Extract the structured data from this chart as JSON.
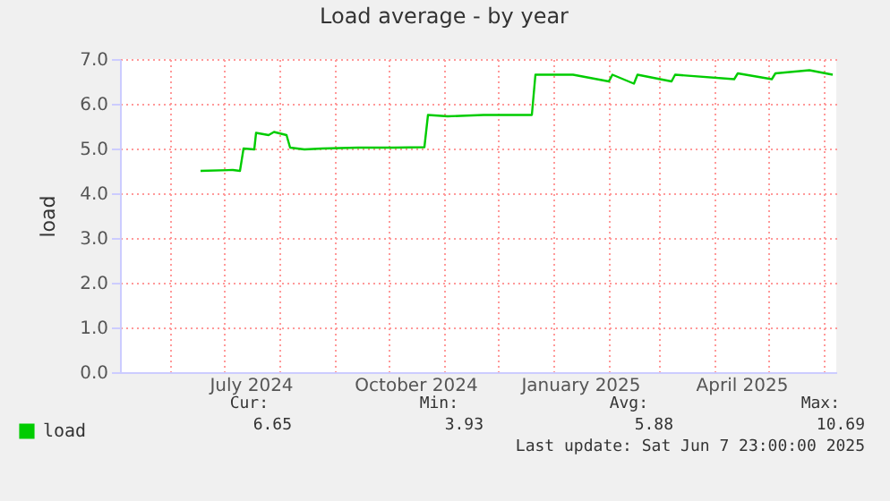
{
  "chart_data": {
    "type": "line",
    "title": "Load average - by year",
    "ylabel": "load",
    "x": [
      "2024-06-18",
      "2024-07-06",
      "2024-07-10",
      "2024-07-12",
      "2024-07-18",
      "2024-07-19",
      "2024-07-26",
      "2024-07-29",
      "2024-08-03",
      "2024-08-05",
      "2024-08-07",
      "2024-08-15",
      "2024-08-25",
      "2024-09-14",
      "2024-10-04",
      "2024-10-21",
      "2024-10-23",
      "2024-11-03",
      "2024-11-23",
      "2024-12-20",
      "2024-12-22",
      "2025-01-12",
      "2025-02-01",
      "2025-02-03",
      "2025-02-15",
      "2025-02-17",
      "2025-03-08",
      "2025-03-10",
      "2025-04-12",
      "2025-04-14",
      "2025-05-03",
      "2025-05-05",
      "2025-05-24",
      "2025-06-06"
    ],
    "series": [
      {
        "name": "load",
        "color": "#00cc00",
        "values": [
          4.5,
          4.52,
          4.5,
          5.0,
          4.98,
          5.35,
          5.3,
          5.37,
          5.32,
          5.3,
          5.02,
          4.98,
          5.0,
          5.02,
          5.02,
          5.03,
          5.75,
          5.72,
          5.75,
          5.75,
          6.65,
          6.65,
          6.5,
          6.65,
          6.45,
          6.65,
          6.5,
          6.65,
          6.55,
          6.68,
          6.55,
          6.68,
          6.75,
          6.65
        ]
      }
    ],
    "xlim": [
      "2024-05-04",
      "2025-06-08"
    ],
    "xticks": [
      {
        "value": "2024-06-01",
        "label": null
      },
      {
        "value": "2024-07-01",
        "label": null
      },
      {
        "value": "2024-08-01",
        "label": null
      },
      {
        "value": "2024-09-01",
        "label": null
      },
      {
        "value": "2024-10-01",
        "label": null
      },
      {
        "value": "2024-11-01",
        "label": null
      },
      {
        "value": "2024-12-01",
        "label": null
      },
      {
        "value": "2025-01-01",
        "label": null
      },
      {
        "value": "2025-02-01",
        "label": null
      },
      {
        "value": "2025-03-01",
        "label": null
      },
      {
        "value": "2025-04-01",
        "label": null
      },
      {
        "value": "2025-05-01",
        "label": null
      },
      {
        "value": "2025-06-01",
        "label": null
      },
      {
        "value": "2024-07-16",
        "label": "July 2024"
      },
      {
        "value": "2024-10-16",
        "label": "October 2024"
      },
      {
        "value": "2025-01-16",
        "label": "January 2025"
      },
      {
        "value": "2025-04-16",
        "label": "April 2025"
      }
    ],
    "ylim": [
      0,
      7
    ],
    "yticks": [
      {
        "value": 0,
        "label": "0.0"
      },
      {
        "value": 1,
        "label": "1.0"
      },
      {
        "value": 2,
        "label": "2.0"
      },
      {
        "value": 3,
        "label": "3.0"
      },
      {
        "value": 4,
        "label": "4.0"
      },
      {
        "value": 5,
        "label": "5.0"
      },
      {
        "value": 6,
        "label": "6.0"
      },
      {
        "value": 7,
        "label": "7.0"
      }
    ],
    "grid": true,
    "legend": "bottom left",
    "marker": "none",
    "line_style": "solid",
    "annotations": [
      "Cur:",
      "Min:",
      "Avg:",
      "Max:",
      "6.65",
      "3.93",
      "5.88",
      "10.69",
      "Last update: Sat Jun  7 23:00:00 2025"
    ]
  }
}
